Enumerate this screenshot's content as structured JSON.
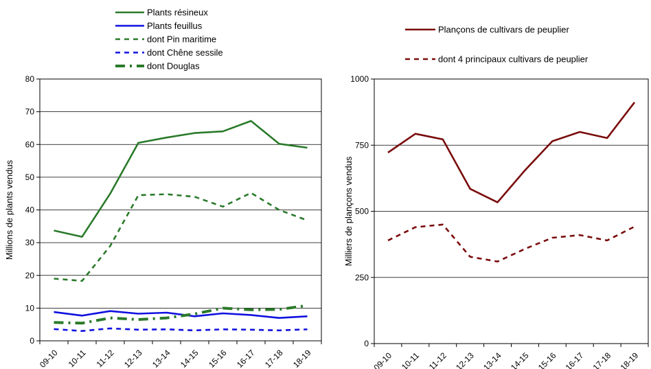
{
  "chart_data": [
    {
      "type": "line",
      "title": "",
      "xlabel": "",
      "ylabel": "Millions de plants vendus",
      "ylim": [
        0,
        80
      ],
      "yticks": [
        0,
        10,
        20,
        30,
        40,
        50,
        60,
        70,
        80
      ],
      "grid": true,
      "legend_position": "top",
      "categories": [
        "09-10",
        "10-11",
        "11-12",
        "12-13",
        "13-14",
        "14-15",
        "15-16",
        "16-17",
        "17-18",
        "18-19"
      ],
      "series": [
        {
          "name": "Plants résineux",
          "color": "#2a7a2a",
          "style": "solid",
          "values": [
            33.7,
            31.8,
            45.0,
            60.5,
            62.1,
            63.5,
            64.0,
            67.2,
            60.2,
            59.0
          ]
        },
        {
          "name": "Plants feuillus",
          "color": "#1010e0",
          "style": "solid",
          "values": [
            8.8,
            7.7,
            9.1,
            8.3,
            8.6,
            7.5,
            8.4,
            7.9,
            7.0,
            7.5
          ]
        },
        {
          "name": "dont Pin maritime",
          "color": "#2a7a2a",
          "style": "dashed",
          "values": [
            19.0,
            18.3,
            29.0,
            44.5,
            44.8,
            44.0,
            41.0,
            45.2,
            40.0,
            36.8
          ]
        },
        {
          "name": "dont Chêne sessile",
          "color": "#1010e0",
          "style": "dashed",
          "values": [
            3.6,
            3.0,
            3.8,
            3.4,
            3.5,
            3.2,
            3.5,
            3.4,
            3.2,
            3.5
          ]
        },
        {
          "name": "dont Douglas",
          "color": "#2a7a2a",
          "style": "dashdot",
          "values": [
            5.6,
            5.4,
            7.0,
            6.5,
            7.0,
            8.2,
            10.0,
            9.5,
            9.6,
            10.8
          ]
        }
      ]
    },
    {
      "type": "line",
      "title": "",
      "xlabel": "",
      "ylabel": "Milliers de plançons vendus",
      "ylim": [
        0,
        1000
      ],
      "yticks": [
        0,
        250,
        500,
        750,
        1000
      ],
      "grid": true,
      "legend_position": "top",
      "categories": [
        "09-10",
        "10-11",
        "11-12",
        "12-13",
        "13-14",
        "14-15",
        "15-16",
        "16-17",
        "17-18",
        "18-19"
      ],
      "series": [
        {
          "name": "Plançons de cultivars de peuplier",
          "color": "#7a0c0c",
          "style": "solid",
          "values": [
            722,
            793,
            772,
            585,
            534,
            655,
            765,
            800,
            777,
            912
          ]
        },
        {
          "name": "dont 4 principaux cultivars de peuplier",
          "color": "#7a0c0c",
          "style": "dashed",
          "values": [
            390,
            440,
            450,
            328,
            310,
            358,
            400,
            410,
            390,
            442
          ]
        }
      ]
    }
  ]
}
